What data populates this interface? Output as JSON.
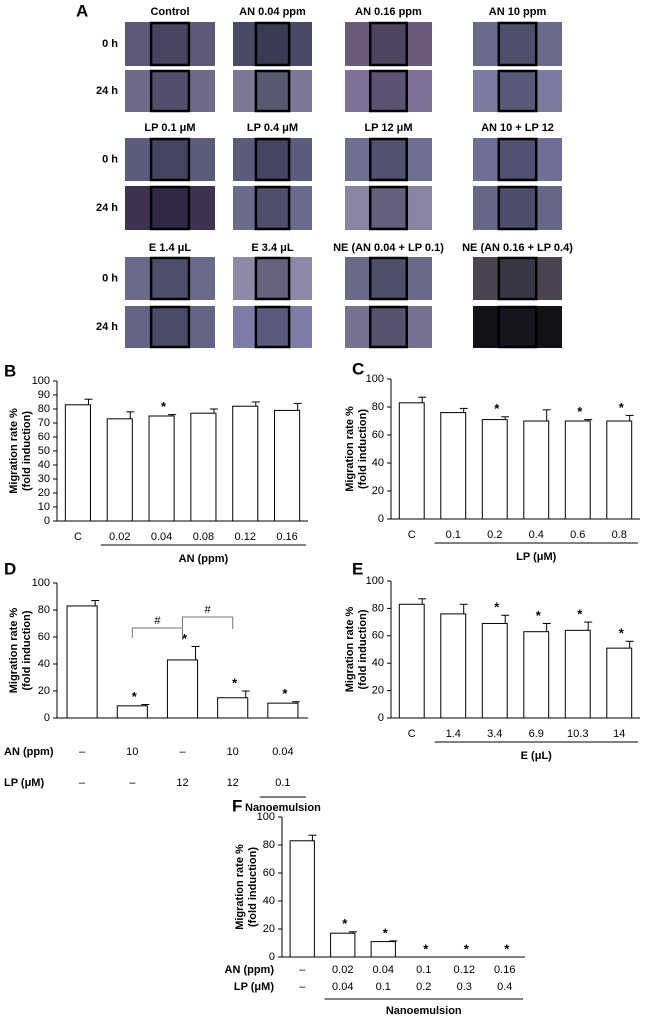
{
  "panel_a": {
    "label": "A",
    "rows": [
      "0 h",
      "24 h"
    ],
    "groups": [
      {
        "columns": [
          "Control",
          "AN 0.04 ppm",
          "AN 0.16 ppm",
          "AN 10 ppm"
        ]
      },
      {
        "columns": [
          "LP 0.1 μM",
          "LP 0.4 μM",
          "LP 12 μM",
          "AN 10 + LP 12"
        ]
      },
      {
        "columns": [
          "E 1.4 μL",
          "E 3.4 μL",
          "NE (AN 0.04 + LP 0.1)",
          "NE (AN 0.16 + LP 0.4)"
        ]
      }
    ]
  },
  "chart_data": [
    {
      "panel": "B",
      "type": "bar",
      "color": "#ffffff",
      "y_label": [
        "Migration rate %",
        "(fold induction)"
      ],
      "categories": [
        "C",
        "0.02",
        "0.04",
        "0.08",
        "0.12",
        "0.16"
      ],
      "values": [
        83,
        73,
        75,
        77,
        82,
        79
      ],
      "errors": [
        4,
        5,
        1,
        3,
        3,
        5
      ],
      "ylim": [
        0,
        100
      ],
      "yticks": [
        0,
        10,
        20,
        30,
        40,
        50,
        60,
        70,
        80,
        90,
        100
      ],
      "x_label": "AN (ppm)",
      "annotations": [
        {
          "index": 2,
          "text": "*"
        }
      ]
    },
    {
      "panel": "C",
      "type": "bar",
      "color": "#ffffff",
      "y_label": [
        "Migration rate %",
        "(fold induction)"
      ],
      "categories": [
        "C",
        "0.1",
        "0.2",
        "0.4",
        "0.6",
        "0.8"
      ],
      "values": [
        83,
        76,
        71,
        70,
        70,
        70
      ],
      "errors": [
        4,
        3,
        2,
        8,
        1,
        4
      ],
      "ylim": [
        0,
        100
      ],
      "yticks": [
        0,
        20,
        40,
        60,
        80,
        100
      ],
      "x_label": "LP (μM)",
      "annotations": [
        {
          "index": 2,
          "text": "*"
        },
        {
          "index": 4,
          "text": "*"
        },
        {
          "index": 5,
          "text": "*"
        }
      ]
    },
    {
      "panel": "D",
      "type": "bar",
      "color": "#ffffff",
      "y_label": [
        "Migration rate %",
        "(fold induction)"
      ],
      "values": [
        83,
        9,
        43,
        15,
        11
      ],
      "errors": [
        4,
        1,
        10,
        5,
        1
      ],
      "rows": [
        {
          "label": "AN (ppm)",
          "values": [
            "–",
            "10",
            "–",
            "10",
            "0.04"
          ]
        },
        {
          "label": "LP (μM)",
          "values": [
            "–",
            "–",
            "12",
            "12",
            "0.1"
          ]
        }
      ],
      "ylim": [
        0,
        100
      ],
      "yticks": [
        0,
        20,
        40,
        60,
        80,
        100
      ],
      "x_label": "Nanoemulsion",
      "annotations": [
        {
          "index": 1,
          "text": "*"
        },
        {
          "index": 2,
          "text": "*"
        },
        {
          "index": 3,
          "text": "*"
        },
        {
          "index": 4,
          "text": "*"
        }
      ],
      "brackets": [
        {
          "from": 1,
          "to": 2,
          "text": "#"
        },
        {
          "from": 2,
          "to": 3,
          "text": "#"
        }
      ]
    },
    {
      "panel": "E",
      "type": "bar",
      "color": "#ffffff",
      "y_label": [
        "Migration rate %",
        "(fold induction)"
      ],
      "categories": [
        "C",
        "1.4",
        "3.4",
        "6.9",
        "10.3",
        "14"
      ],
      "values": [
        83,
        76,
        69,
        63,
        64,
        51
      ],
      "errors": [
        4,
        7,
        6,
        6,
        6,
        5
      ],
      "ylim": [
        0,
        100
      ],
      "yticks": [
        0,
        20,
        40,
        60,
        80,
        100
      ],
      "x_label": "E (μL)",
      "annotations": [
        {
          "index": 2,
          "text": "*"
        },
        {
          "index": 3,
          "text": "*"
        },
        {
          "index": 4,
          "text": "*"
        },
        {
          "index": 5,
          "text": "*"
        }
      ]
    },
    {
      "panel": "F",
      "type": "bar",
      "color": "#ffffff",
      "y_label": [
        "Migration rate %",
        "(fold induction)"
      ],
      "values": [
        83,
        17,
        11,
        0,
        0,
        0
      ],
      "errors": [
        4,
        1,
        0.5,
        0,
        0,
        0
      ],
      "rows": [
        {
          "label": "AN (ppm)",
          "values": [
            "–",
            "0.02",
            "0.04",
            "0.1",
            "0.12",
            "0.16"
          ]
        },
        {
          "label": "LP (μM)",
          "values": [
            "–",
            "0.04",
            "0.1",
            "0.2",
            "0.3",
            "0.4"
          ]
        }
      ],
      "ylim": [
        0,
        100
      ],
      "yticks": [
        0,
        20,
        40,
        60,
        80,
        100
      ],
      "x_label": "Nanoemulsion",
      "annotations": [
        {
          "index": 1,
          "text": "*"
        },
        {
          "index": 2,
          "text": "*"
        },
        {
          "index": 3,
          "text": "*"
        },
        {
          "index": 4,
          "text": "*"
        },
        {
          "index": 5,
          "text": "*"
        }
      ]
    }
  ]
}
